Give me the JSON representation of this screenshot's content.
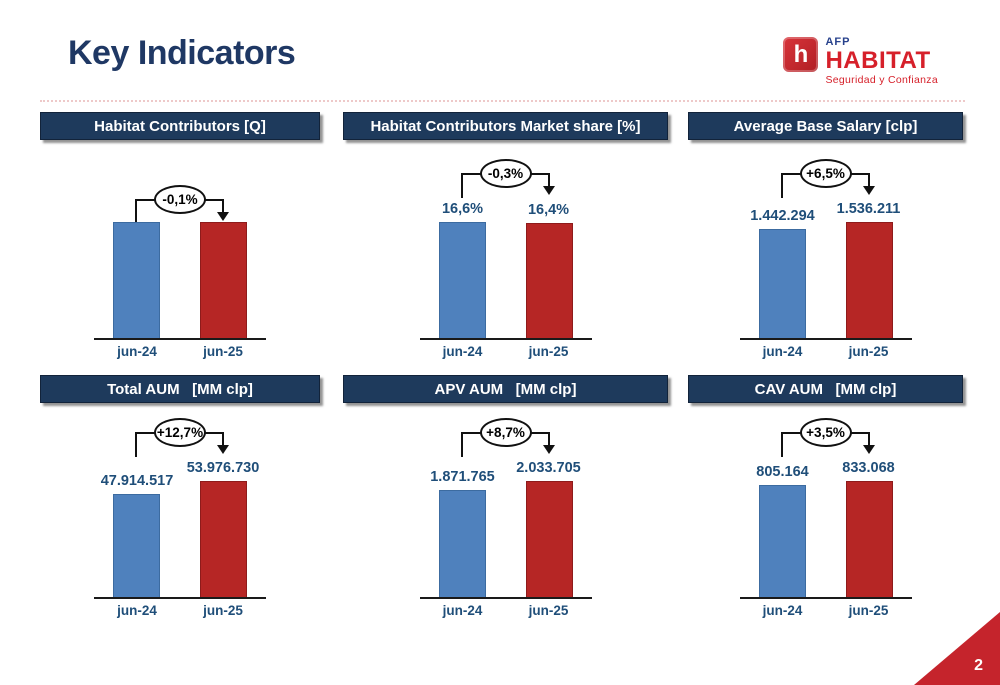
{
  "page": {
    "title": "Key Indicators",
    "page_number": "2"
  },
  "logo": {
    "icon_letter": "h",
    "afp": "AFP",
    "habitat": "HABITAT",
    "tagline": "Seguridad y Confianza"
  },
  "colors": {
    "title_navy": "#1f3864",
    "header_bg": "#1e3a5c",
    "bar_blue": "#4f81bd",
    "bar_red": "#b62625",
    "label_navy": "#1f4e79",
    "corner_red": "#c5242c"
  },
  "chart_data": [
    {
      "type": "bar",
      "title": "Habitat Contributors [Q]",
      "categories": [
        "jun-24",
        "jun-25"
      ],
      "values": null,
      "value_labels": [
        "",
        ""
      ],
      "change_label": "-0,1%",
      "series_colors": [
        "#4f81bd",
        "#b62625"
      ],
      "notes": "bars nearly equal height, no value labels shown"
    },
    {
      "type": "bar",
      "title": "Habitat Contributors Market share [%]",
      "categories": [
        "jun-24",
        "jun-25"
      ],
      "values": [
        16.6,
        16.4
      ],
      "value_labels": [
        "16,6%",
        "16,4%"
      ],
      "change_label": "-0,3%",
      "series_colors": [
        "#4f81bd",
        "#b62625"
      ]
    },
    {
      "type": "bar",
      "title": "Average Base Salary [clp]",
      "categories": [
        "jun-24",
        "jun-25"
      ],
      "values": [
        1442294,
        1536211
      ],
      "value_labels": [
        "1.442.294",
        "1.536.211"
      ],
      "change_label": "+6,5%",
      "series_colors": [
        "#4f81bd",
        "#b62625"
      ]
    },
    {
      "type": "bar",
      "title": "Total AUM   [MM clp]",
      "categories": [
        "jun-24",
        "jun-25"
      ],
      "values": [
        47914517,
        53976730
      ],
      "value_labels": [
        "47.914.517",
        "53.976.730"
      ],
      "change_label": "+12,7%",
      "series_colors": [
        "#4f81bd",
        "#b62625"
      ]
    },
    {
      "type": "bar",
      "title": "APV AUM   [MM clp]",
      "categories": [
        "jun-24",
        "jun-25"
      ],
      "values": [
        1871765,
        2033705
      ],
      "value_labels": [
        "1.871.765",
        "2.033.705"
      ],
      "change_label": "+8,7%",
      "series_colors": [
        "#4f81bd",
        "#b62625"
      ]
    },
    {
      "type": "bar",
      "title": "CAV AUM   [MM clp]",
      "categories": [
        "jun-24",
        "jun-25"
      ],
      "values": [
        805164,
        833068
      ],
      "value_labels": [
        "805.164",
        "833.068"
      ],
      "change_label": "+3,5%",
      "series_colors": [
        "#4f81bd",
        "#b62625"
      ]
    }
  ]
}
